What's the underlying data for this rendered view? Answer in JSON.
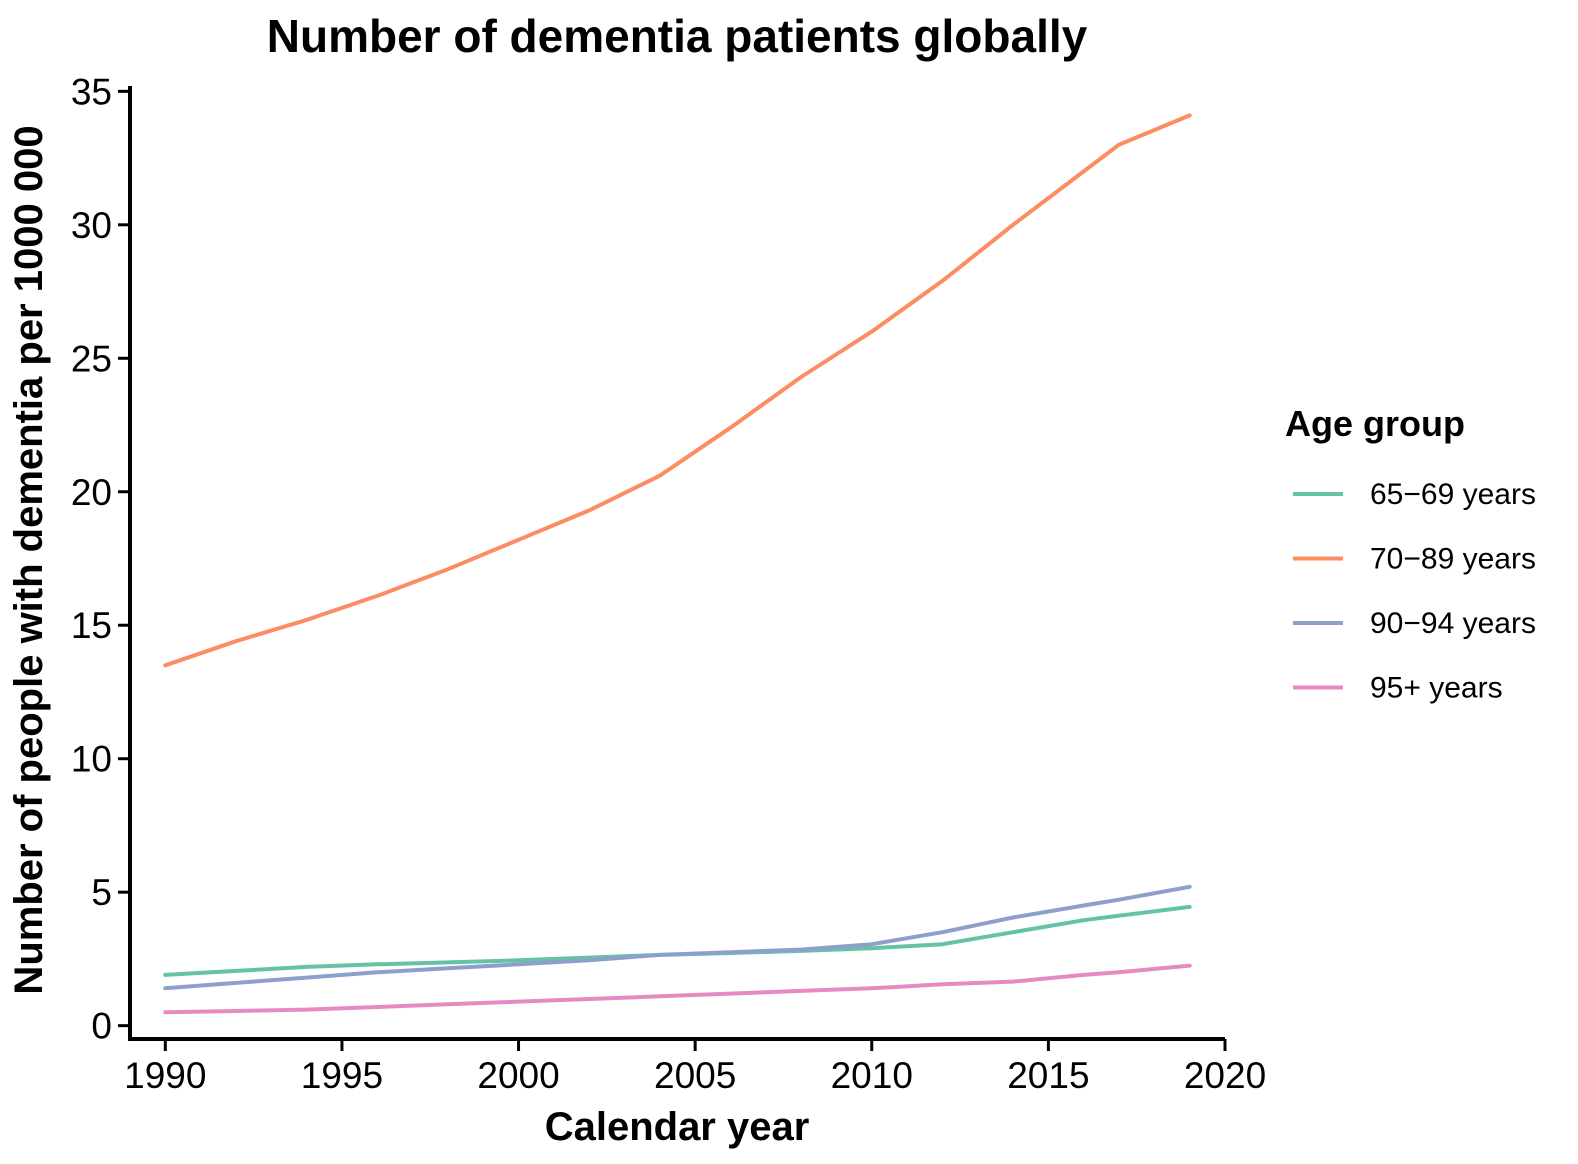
{
  "chart_data": {
    "type": "line",
    "title": "Number of dementia patients globally",
    "xlabel": "Calendar year",
    "ylabel": "Number of people with dementia per 1000 000",
    "xlim": [
      1989,
      2020
    ],
    "ylim": [
      -0.5,
      35.2
    ],
    "x_ticks": [
      1990,
      1995,
      2000,
      2005,
      2010,
      2015,
      2020
    ],
    "y_ticks": [
      0,
      5,
      10,
      15,
      20,
      25,
      30,
      35
    ],
    "grid": false,
    "legend": {
      "title": "Age group",
      "position": "right"
    },
    "x": [
      1990,
      1992,
      1994,
      1996,
      1998,
      2000,
      2002,
      2004,
      2006,
      2008,
      2010,
      2012,
      2014,
      2016,
      2017,
      2019
    ],
    "series": [
      {
        "name": "65−69 years",
        "color": "#66c2a5",
        "values": [
          1.9,
          2.05,
          2.2,
          2.3,
          2.37,
          2.45,
          2.55,
          2.65,
          2.72,
          2.8,
          2.9,
          3.05,
          3.5,
          3.95,
          4.12,
          4.45
        ]
      },
      {
        "name": "70−89 years",
        "color": "#fc8d62",
        "values": [
          13.5,
          14.4,
          15.2,
          16.1,
          17.1,
          18.2,
          19.3,
          20.6,
          22.4,
          24.3,
          26.0,
          27.9,
          30.0,
          32.0,
          33.0,
          34.1
        ]
      },
      {
        "name": "90−94 years",
        "color": "#8da0cb",
        "values": [
          1.4,
          1.6,
          1.8,
          2.0,
          2.15,
          2.3,
          2.45,
          2.65,
          2.75,
          2.85,
          3.05,
          3.5,
          4.05,
          4.5,
          4.72,
          5.2
        ]
      },
      {
        "name": "95+ years",
        "color": "#e78ac3",
        "values": [
          0.5,
          0.55,
          0.6,
          0.7,
          0.8,
          0.9,
          1.0,
          1.1,
          1.2,
          1.3,
          1.4,
          1.55,
          1.65,
          1.9,
          2.0,
          2.25
        ]
      }
    ]
  }
}
